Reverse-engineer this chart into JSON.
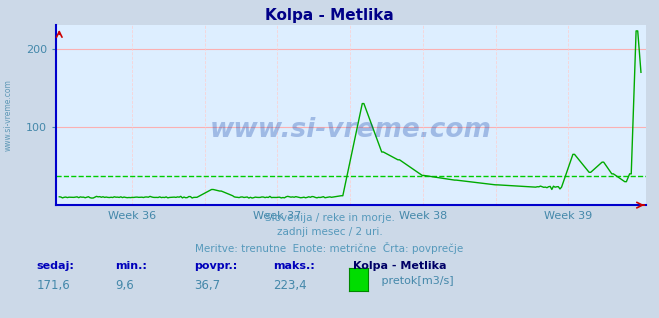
{
  "title": "Kolpa - Metlika",
  "bg_color": "#ccd9e8",
  "plot_bg_color": "#ddeeff",
  "grid_color_h": "#ffaaaa",
  "grid_color_v": "#ffcccc",
  "line_color": "#00aa00",
  "avg_line_color": "#00cc00",
  "axis_color": "#0000cc",
  "title_color": "#000088",
  "tick_color": "#4488aa",
  "x_arrow_color": "#cc0000",
  "y_arrow_color": "#cc0000",
  "sedaj_label": "sedaj:",
  "min_label": "min.:",
  "povpr_label": "povpr.:",
  "maks_label": "maks.:",
  "station_label": "Kolpa - Metlika",
  "unit_label": " pretok[m3/s]",
  "legend_color": "#00dd00",
  "sedaj_val": "171,6",
  "min_val": "9,6",
  "povpr_val": "36,7",
  "maks_val": "223,4",
  "footer_line1": "Slovenija / reke in morje.",
  "footer_line2": "zadnji mesec / 2 uri.",
  "footer_line3": "Meritve: trenutne  Enote: metrične  Črta: povprečje",
  "ylim": [
    0,
    230
  ],
  "yticks": [
    100,
    200
  ],
  "avg_value": 36.7,
  "week_labels": [
    "Week 36",
    "Week 37",
    "Week 38",
    "Week 39"
  ],
  "watermark": "www.si-vreme.com",
  "sidebar_text": "www.si-vreme.com",
  "footer_color": "#5599bb",
  "sidebar_color": "#4488aa",
  "label_bold_color": "#0000bb",
  "value_color": "#4488aa",
  "station_bold_color": "#000066"
}
